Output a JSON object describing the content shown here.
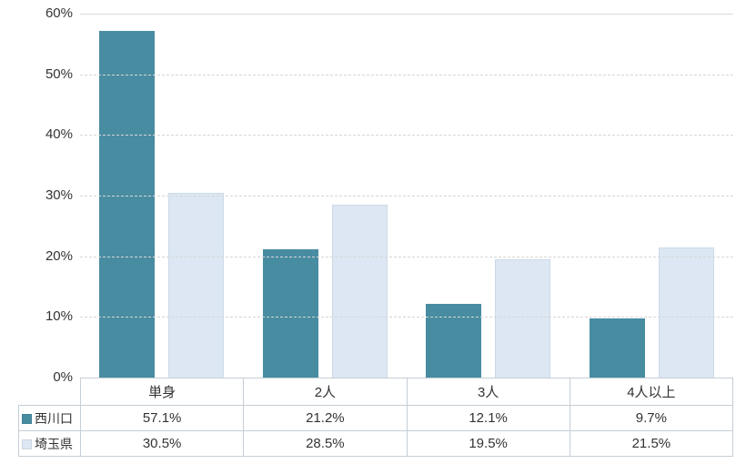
{
  "chart_data": {
    "type": "bar",
    "title": "",
    "xlabel": "",
    "ylabel": "",
    "categories": [
      "単身",
      "2人",
      "3人",
      "4人以上"
    ],
    "series": [
      {
        "name": "西川口",
        "color": "#488CA2",
        "values": [
          57.1,
          21.2,
          12.1,
          9.7
        ]
      },
      {
        "name": "埼玉県",
        "color": "#DCE7F3",
        "values": [
          30.5,
          28.5,
          19.5,
          21.5
        ]
      }
    ],
    "ylim": [
      0,
      60
    ],
    "yticks": [
      "0%",
      "10%",
      "20%",
      "30%",
      "40%",
      "50%",
      "60%"
    ],
    "grid": "horizontal-dashed",
    "legend_position": "table-left"
  },
  "table": {
    "header": [
      "単身",
      "2人",
      "3人",
      "4人以上"
    ],
    "rows": [
      {
        "legend": "西川口",
        "cells": [
          "57.1%",
          "21.2%",
          "12.1%",
          "9.7%"
        ]
      },
      {
        "legend": "埼玉県",
        "cells": [
          "30.5%",
          "28.5%",
          "19.5%",
          "21.5%"
        ]
      }
    ]
  },
  "colors": {
    "series_nishikawaguchi": "#488CA2",
    "series_saitama": "#DCE7F3",
    "gridline": "#D9D9D9",
    "table_border": "#C5CED6",
    "text": "#333333",
    "background": "#FFFFFF"
  }
}
